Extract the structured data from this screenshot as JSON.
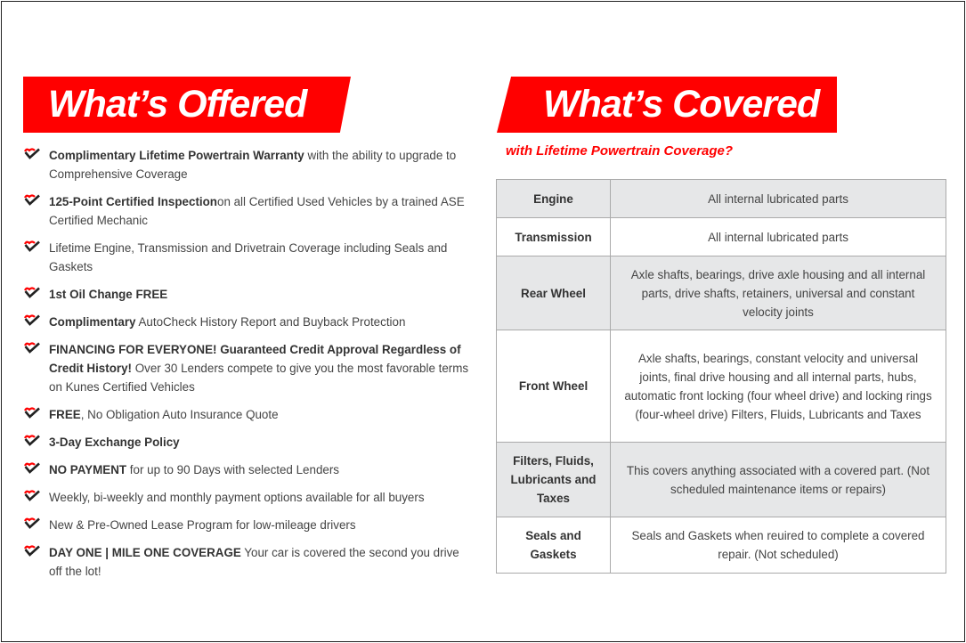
{
  "offered": {
    "title": "What’s Offered",
    "items": [
      {
        "bold": "Complimentary Lifetime Powertrain Warranty",
        "text": " with the ability to upgrade to Comprehensive Coverage"
      },
      {
        "bold": "125-Point Certified Inspection",
        "text": "on all Certified Used Vehicles by a trained ASE Certified Mechanic"
      },
      {
        "bold": "",
        "text": "Lifetime Engine, Transmission and Drivetrain Coverage including Seals and Gaskets"
      },
      {
        "bold": "1st Oil Change FREE",
        "text": ""
      },
      {
        "bold": "Complimentary",
        "text": " AutoCheck History Report and Buyback Protection"
      },
      {
        "bold": "FINANCING FOR EVERYONE! Guaranteed Credit Approval Regardless of Credit History!",
        "text": " Over 30 Lenders compete to give you the most favorable terms on Kunes Certified Vehicles"
      },
      {
        "bold": "FREE",
        "text": ", No Obligation Auto Insurance Quote"
      },
      {
        "bold": "3-Day Exchange Policy",
        "text": ""
      },
      {
        "bold": "NO PAYMENT",
        "text": " for up to 90 Days with selected Lenders"
      },
      {
        "bold": "",
        "text": "Weekly, bi-weekly and monthly payment options available for all buyers"
      },
      {
        "bold": "",
        "text": "New & Pre-Owned Lease Program for low-mileage drivers"
      },
      {
        "bold": "DAY ONE | MILE ONE COVERAGE",
        "text": " Your car is covered the second you drive off the lot!"
      }
    ]
  },
  "covered": {
    "title": "What’s Covered",
    "subtitle": "with Lifetime Powertrain Coverage?",
    "rows": [
      {
        "part": "Engine",
        "coverage": "All internal lubricated parts"
      },
      {
        "part": "Transmission",
        "coverage": "All internal lubricated parts"
      },
      {
        "part": "Rear Wheel",
        "coverage": "Axle shafts, bearings, drive axle housing and all internal parts, drive shafts, retainers, universal and constant velocity joints"
      },
      {
        "part": "Front Wheel",
        "coverage": "Axle shafts, bearings, constant velocity and universal joints, final drive housing and all internal parts, hubs, automatic front locking (four wheel drive) and locking rings (four-wheel drive) Filters, Fluids, Lubricants and Taxes"
      },
      {
        "part": "Filters, Fluids, Lubricants and Taxes",
        "coverage": "This covers anything associated with a covered part. (Not scheduled maintenance items or repairs)"
      },
      {
        "part": "Seals and Gaskets",
        "coverage": "Seals and Gaskets when reuired to complete a covered repair. (Not scheduled)"
      }
    ]
  },
  "colors": {
    "accent": "#ff0000",
    "row_shade": "#e6e7e8",
    "check": "#222222"
  },
  "icons": {
    "bullet": "heart-check-icon"
  }
}
